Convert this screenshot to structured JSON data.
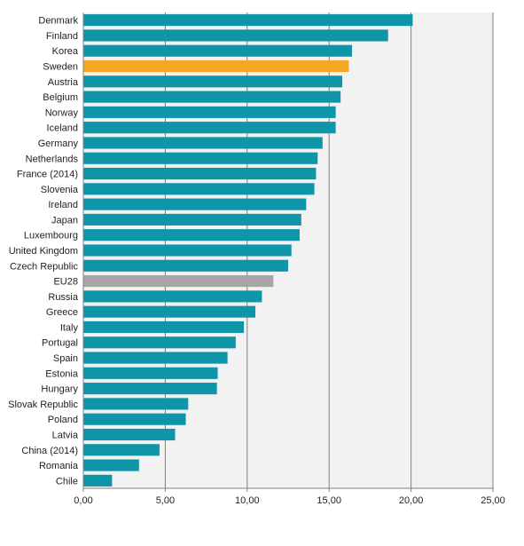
{
  "chart_data": {
    "type": "bar",
    "orientation": "horizontal",
    "title": "",
    "xlabel": "",
    "ylabel": "",
    "xlim": [
      0,
      25
    ],
    "x_ticks": [
      "0,00",
      "5,00",
      "10,00",
      "15,00",
      "20,00",
      "25,00"
    ],
    "grid": "vertical",
    "legend": "none",
    "colors": {
      "default": "#0e95a8",
      "highlight": "#f5a623",
      "reference": "#a6a6a6",
      "plot_background": "#f2f2f2",
      "gridline": "#7f7f7f"
    },
    "categories": [
      "Denmark",
      "Finland",
      "Korea",
      "Sweden",
      "Austria",
      "Belgium",
      "Norway",
      "Iceland",
      "Germany",
      "Netherlands",
      "France (2014)",
      "Slovenia",
      "Ireland",
      "Japan",
      "Luxembourg",
      "United Kingdom",
      "Czech Republic",
      "EU28",
      "Russia",
      "Greece",
      "Italy",
      "Portugal",
      "Spain",
      "Estonia",
      "Hungary",
      "Slovak Republic",
      "Poland",
      "Latvia",
      "China (2014)",
      "Romania",
      "Chile"
    ],
    "values": [
      20.1,
      18.6,
      16.4,
      16.2,
      15.8,
      15.7,
      15.4,
      15.4,
      14.6,
      14.3,
      14.2,
      14.1,
      13.6,
      13.3,
      13.2,
      12.7,
      12.5,
      11.6,
      10.9,
      10.5,
      9.8,
      9.3,
      8.8,
      8.2,
      8.15,
      6.4,
      6.25,
      5.6,
      4.65,
      3.4,
      1.75
    ],
    "highlight": [
      "Sweden"
    ],
    "reference": [
      "EU28"
    ]
  }
}
